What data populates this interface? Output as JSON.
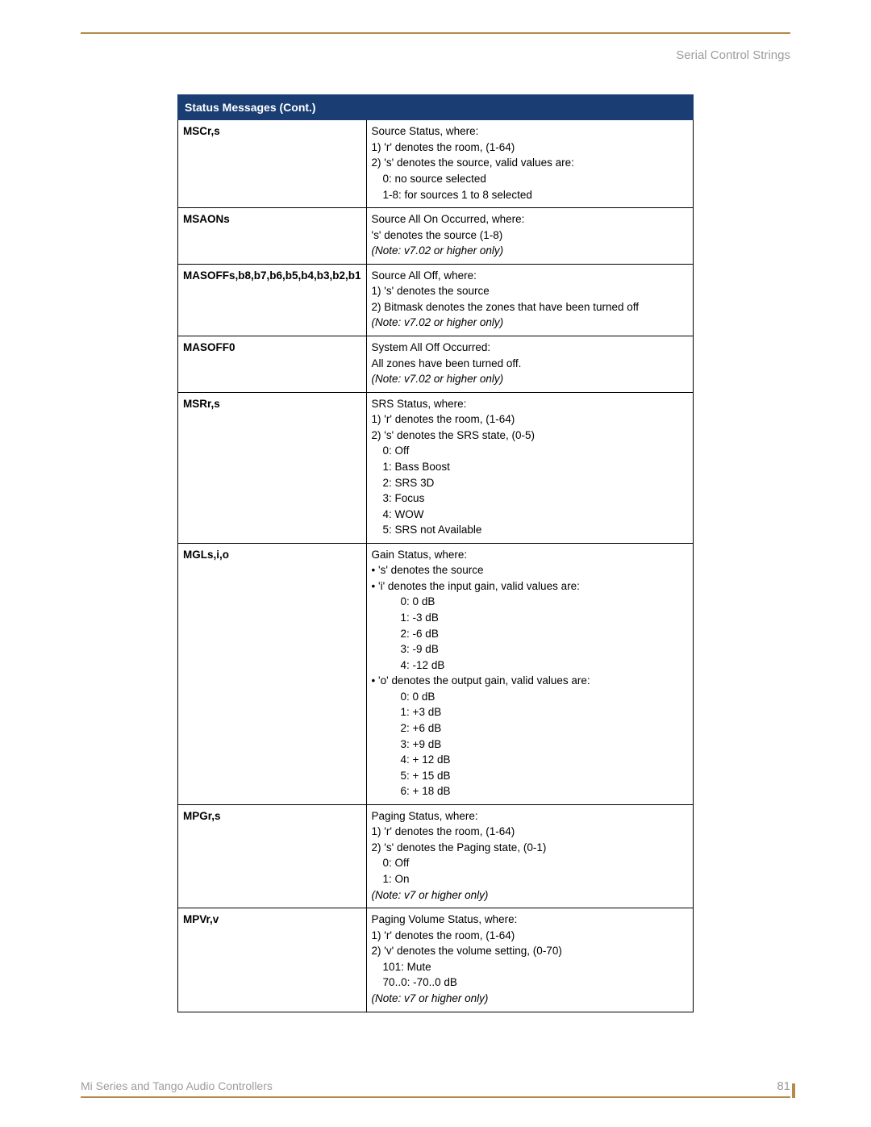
{
  "header": {
    "section_title": "Serial Control Strings"
  },
  "table": {
    "title": "Status Messages (Cont.)",
    "rows": [
      {
        "cmd": "MSCr,s",
        "lines": [
          {
            "t": "Source Status, where:"
          },
          {
            "t": "1) 'r' denotes the room, (1-64)"
          },
          {
            "t": "2) 's' denotes the source, valid values are:"
          },
          {
            "t": "0: no source selected",
            "cls": "indent1"
          },
          {
            "t": "1-8: for sources 1 to 8 selected",
            "cls": "indent1"
          }
        ]
      },
      {
        "cmd": "MSAONs",
        "lines": [
          {
            "t": "Source All On Occurred, where:"
          },
          {
            "t": "'s' denotes the source (1-8)"
          },
          {
            "t": "(Note: v7.02 or higher only)",
            "cls": "ital"
          }
        ]
      },
      {
        "cmd": "MASOFFs,b8,b7,b6,b5,b4,b3,b2,b1",
        "lines": [
          {
            "t": "Source All Off, where:"
          },
          {
            "t": "1) 's' denotes the source"
          },
          {
            "t": "2) Bitmask denotes the zones that have been turned off"
          },
          {
            "t": "(Note: v7.02 or higher only)",
            "cls": "ital"
          }
        ]
      },
      {
        "cmd": "MASOFF0",
        "lines": [
          {
            "t": "System All Off Occurred:"
          },
          {
            "t": "All zones have been turned off."
          },
          {
            "t": "(Note: v7.02 or higher only)",
            "cls": "ital"
          }
        ]
      },
      {
        "cmd": "MSRr,s",
        "lines": [
          {
            "t": "SRS Status, where:"
          },
          {
            "t": "1) 'r' denotes the room, (1-64)"
          },
          {
            "t": "2) 's' denotes the SRS state, (0-5)"
          },
          {
            "t": "0: Off",
            "cls": "indent1"
          },
          {
            "t": "1: Bass Boost",
            "cls": "indent1"
          },
          {
            "t": "2: SRS 3D",
            "cls": "indent1"
          },
          {
            "t": "3: Focus",
            "cls": "indent1"
          },
          {
            "t": "4: WOW",
            "cls": "indent1"
          },
          {
            "t": "5: SRS not Available",
            "cls": "indent1"
          }
        ]
      },
      {
        "cmd": "MGLs,i,o",
        "lines": [
          {
            "t": "Gain Status, where:"
          },
          {
            "t": "•  's' denotes the source"
          },
          {
            "t": "•  'i' denotes the input gain, valid values are:"
          },
          {
            "t": "0: 0 dB",
            "cls": "indent2"
          },
          {
            "t": "1: -3 dB",
            "cls": "indent2"
          },
          {
            "t": "2: -6 dB",
            "cls": "indent2"
          },
          {
            "t": "3: -9 dB",
            "cls": "indent2"
          },
          {
            "t": "4: -12 dB",
            "cls": "indent2"
          },
          {
            "t": "•  'o' denotes the output gain, valid values are:"
          },
          {
            "t": "0: 0 dB",
            "cls": "indent2"
          },
          {
            "t": "1: +3 dB",
            "cls": "indent2"
          },
          {
            "t": "2: +6 dB",
            "cls": "indent2"
          },
          {
            "t": "3: +9 dB",
            "cls": "indent2"
          },
          {
            "t": "4: + 12 dB",
            "cls": "indent2"
          },
          {
            "t": "5: + 15 dB",
            "cls": "indent2"
          },
          {
            "t": "6: + 18 dB",
            "cls": "indent2"
          }
        ]
      },
      {
        "cmd": "MPGr,s",
        "lines": [
          {
            "t": "Paging Status, where:"
          },
          {
            "t": "1) 'r' denotes the room, (1-64)"
          },
          {
            "t": "2) 's' denotes the Paging state, (0-1)"
          },
          {
            "t": "0: Off",
            "cls": "indent1"
          },
          {
            "t": "1: On",
            "cls": "indent1"
          },
          {
            "t": "(Note: v7 or higher only)",
            "cls": "ital"
          }
        ]
      },
      {
        "cmd": "MPVr,v",
        "lines": [
          {
            "t": "Paging Volume Status, where:"
          },
          {
            "t": "1) 'r' denotes the room, (1-64)"
          },
          {
            "t": "2) 'v' denotes the volume setting, (0-70)"
          },
          {
            "t": "101: Mute",
            "cls": "indent1"
          },
          {
            "t": "70..0: -70..0 dB",
            "cls": "indent1"
          },
          {
            "t": "(Note: v7 or higher only)",
            "cls": "ital"
          }
        ]
      }
    ]
  },
  "footer": {
    "left": "Mi Series and Tango Audio Controllers",
    "page_number": "81"
  },
  "colors": {
    "rule": "#b48a4a",
    "header_bg": "#1a3e73",
    "muted_text": "#9d9d9d"
  }
}
